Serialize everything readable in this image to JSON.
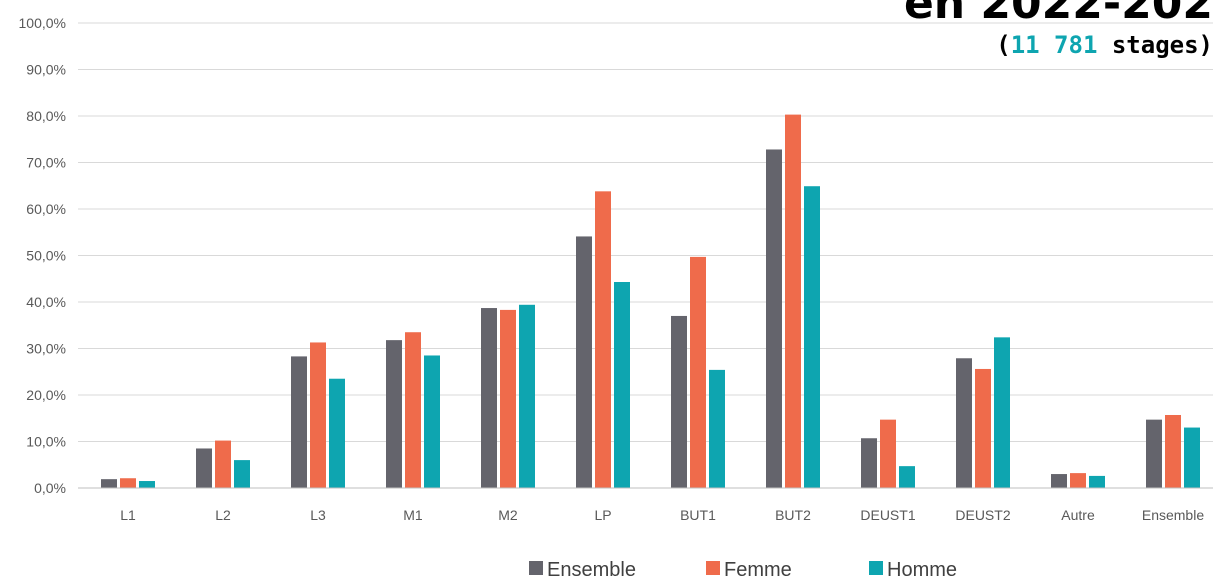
{
  "chart_data": {
    "type": "bar",
    "title": "en 2022-202",
    "subtitle": {
      "open": "(",
      "count": "11 781",
      "rest": " stages)"
    },
    "categories": [
      "L1",
      "L2",
      "L3",
      "M1",
      "M2",
      "LP",
      "BUT1",
      "BUT2",
      "DEUST1",
      "DEUST2",
      "Autre",
      "Ensemble"
    ],
    "series": [
      {
        "name": "Ensemble",
        "color": "#64646c",
        "values": [
          1.9,
          8.5,
          28.3,
          31.8,
          38.7,
          54.1,
          37.0,
          72.8,
          10.7,
          27.9,
          3.0,
          14.7
        ]
      },
      {
        "name": "Femme",
        "color": "#ef6b4b",
        "values": [
          2.1,
          10.2,
          31.3,
          33.5,
          38.3,
          63.8,
          49.7,
          80.3,
          14.7,
          25.6,
          3.2,
          15.7
        ]
      },
      {
        "name": "Homme",
        "color": "#0ea5b0",
        "values": [
          1.5,
          6.0,
          23.5,
          28.5,
          39.4,
          44.3,
          25.4,
          64.9,
          4.7,
          32.4,
          2.6,
          13.0
        ]
      }
    ],
    "yticks": [
      "0,0%",
      "10,0%",
      "20,0%",
      "30,0%",
      "40,0%",
      "50,0%",
      "60,0%",
      "70,0%",
      "80,0%",
      "90,0%",
      "100,0%"
    ],
    "ylim": [
      0,
      100
    ],
    "grid": true,
    "legend_position": "bottom"
  }
}
